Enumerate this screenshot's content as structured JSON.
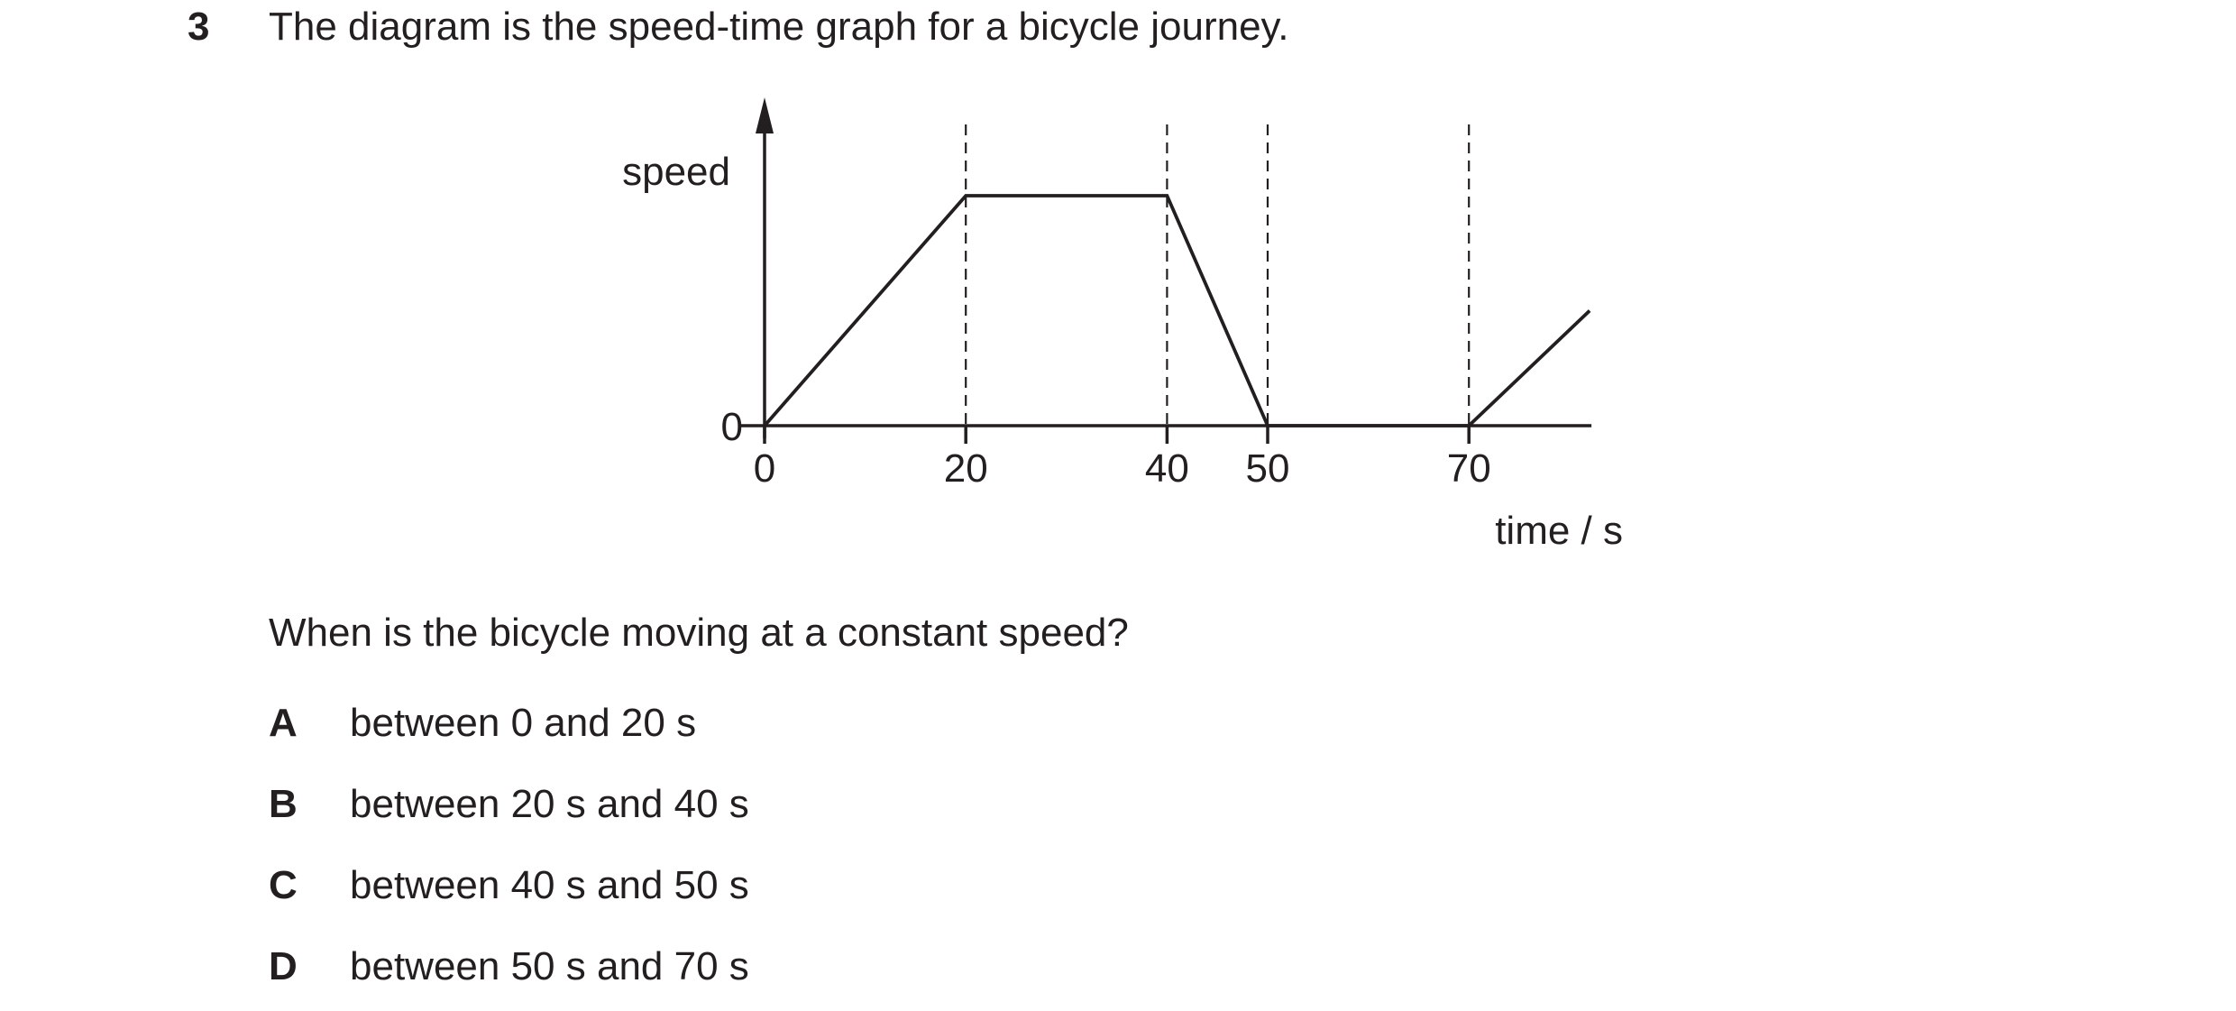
{
  "question": {
    "number": "3",
    "text": "The diagram is the speed-time graph for a bicycle journey.",
    "prompt": "When is the bicycle moving at a constant speed?",
    "options": [
      {
        "letter": "A",
        "text": "between 0 and 20 s"
      },
      {
        "letter": "B",
        "text": "between 20 s and 40 s"
      },
      {
        "letter": "C",
        "text": "between 40 s and 50 s"
      },
      {
        "letter": "D",
        "text": "between 50 s and 70 s"
      }
    ]
  },
  "chart_data": {
    "type": "line",
    "title": "",
    "xlabel": "time / s",
    "ylabel": "speed",
    "x_ticks": [
      0,
      20,
      40,
      50,
      70
    ],
    "y_ticks": [
      0
    ],
    "xlim": [
      0,
      82
    ],
    "ylim": [
      0,
      1.15
    ],
    "grid": false,
    "dashed_verticals_at": [
      20,
      40,
      50,
      70
    ],
    "series": [
      {
        "x": [
          0,
          20,
          40,
          50,
          70,
          82
        ],
        "y": [
          0,
          1,
          1,
          0,
          0,
          0.5
        ]
      }
    ]
  }
}
